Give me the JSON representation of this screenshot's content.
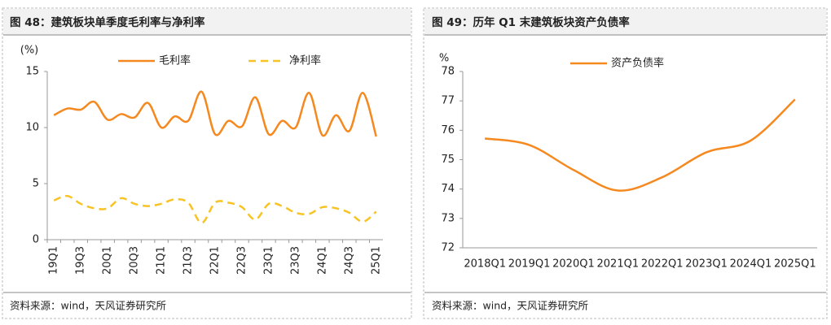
{
  "chart_data": [
    {
      "type": "line",
      "title": "图 48：建筑板块单季度毛利率与净利率",
      "ylabel": "(%)",
      "source": "资料来源：wind，天风证券研究所",
      "categories": [
        "19Q1",
        null,
        "19Q3",
        null,
        "20Q1",
        null,
        "20Q3",
        null,
        "21Q1",
        null,
        "21Q3",
        null,
        "22Q1",
        null,
        "22Q3",
        null,
        "23Q1",
        null,
        "23Q3",
        null,
        "24Q1",
        null,
        "24Q3",
        null,
        "25Q1"
      ],
      "series": [
        {
          "name": "毛利率",
          "color": "#f5891f",
          "dash": false,
          "values": [
            11.1,
            11.7,
            11.6,
            12.3,
            10.7,
            11.2,
            10.9,
            12.2,
            10.0,
            11.0,
            10.6,
            13.2,
            9.4,
            10.6,
            10.1,
            12.7,
            9.4,
            10.6,
            10.0,
            13.1,
            9.3,
            11.1,
            9.7,
            13.1,
            9.2
          ]
        },
        {
          "name": "净利率",
          "color": "#f7c325",
          "dash": true,
          "values": [
            3.5,
            3.9,
            3.2,
            2.8,
            2.8,
            3.7,
            3.2,
            3.0,
            3.2,
            3.6,
            3.3,
            1.5,
            3.3,
            3.3,
            2.9,
            1.8,
            3.2,
            3.0,
            2.4,
            2.3,
            2.9,
            2.8,
            2.4,
            1.6,
            2.5
          ]
        }
      ],
      "ylim": [
        0,
        15
      ],
      "yticks": [
        0,
        5,
        10,
        15
      ],
      "legend": "top",
      "smooth": true,
      "rotate_labels": true
    },
    {
      "type": "line",
      "title": "图 49：历年 Q1 末建筑板块资产负债率",
      "ylabel": "%",
      "source": "资料来源：wind，天风证券研究所",
      "categories": [
        "2018Q1",
        "2019Q1",
        "2020Q1",
        "2021Q1",
        "2022Q1",
        "2023Q1",
        "2024Q1",
        "2025Q1"
      ],
      "series": [
        {
          "name": "资产负债率",
          "color": "#f5891f",
          "dash": false,
          "values": [
            75.72,
            75.5,
            74.65,
            73.95,
            74.4,
            75.25,
            75.65,
            77.05
          ]
        }
      ],
      "ylim": [
        72,
        78
      ],
      "yticks": [
        72,
        73,
        74,
        75,
        76,
        77,
        78
      ],
      "legend": "top",
      "smooth": true,
      "rotate_labels": false
    }
  ]
}
